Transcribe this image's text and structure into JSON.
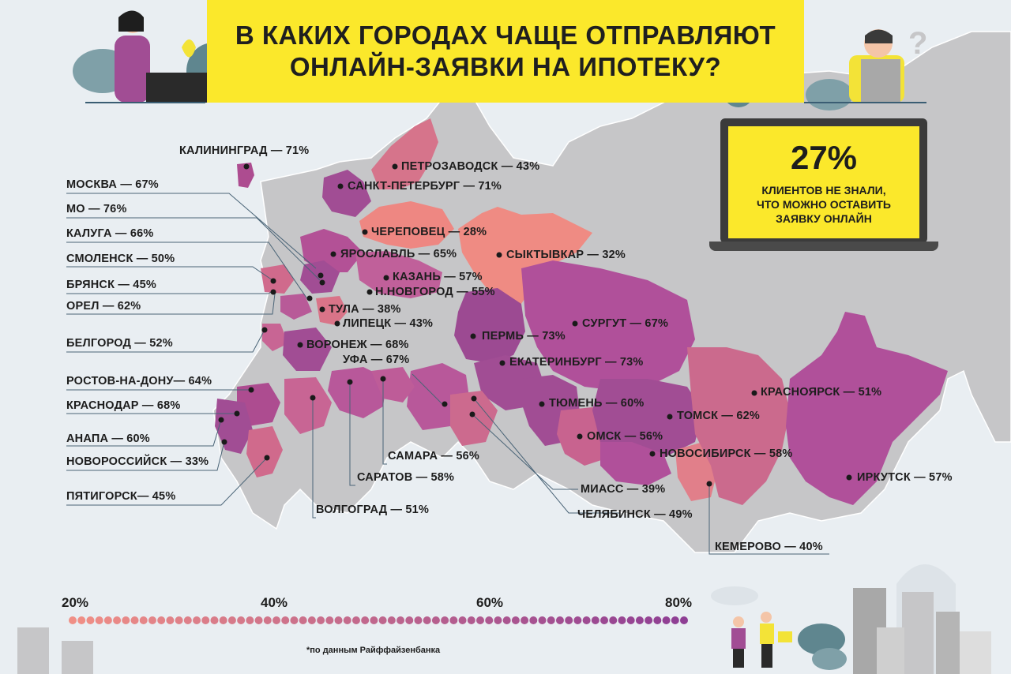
{
  "title": {
    "line1": "В КАКИХ ГОРОДАХ ЧАЩЕ ОТПРАВЛЯЮТ",
    "line2": "ОНЛАЙН-ЗАЯВКИ НА ИПОТЕКУ?"
  },
  "callout": {
    "value": "27%",
    "line1": "КЛИЕНТОВ НЕ ЗНАЛИ,",
    "line2": "ЧТО МОЖНО ОСТАВИТЬ",
    "line3": "ЗАЯВКУ ОНЛАЙН"
  },
  "cities": [
    {
      "label": "КАЛИНИНГРАД — 71%",
      "value": 71
    },
    {
      "label": "ПЕТРОЗАВОДСК — 43%",
      "value": 43
    },
    {
      "label": "САНКТ-ПЕТЕРБУРГ — 71%",
      "value": 71
    },
    {
      "label": "МОСКВА — 67%",
      "value": 67
    },
    {
      "label": "МО — 76%",
      "value": 76
    },
    {
      "label": "КАЛУГА — 66%",
      "value": 66
    },
    {
      "label": "СМОЛЕНСК — 50%",
      "value": 50
    },
    {
      "label": "БРЯНСК — 45%",
      "value": 45
    },
    {
      "label": "ОРЕЛ — 62%",
      "value": 62
    },
    {
      "label": "БЕЛГОРОД — 52%",
      "value": 52
    },
    {
      "label": "РОСТОВ-НА-ДОНУ— 64%",
      "value": 64
    },
    {
      "label": "КРАСНОДАР — 68%",
      "value": 68
    },
    {
      "label": "АНАПА — 60%",
      "value": 60
    },
    {
      "label": "НОВОРОССИЙСК — 33%",
      "value": 33
    },
    {
      "label": "ПЯТИГОРСК— 45%",
      "value": 45
    },
    {
      "label": "ЧЕРЕПОВЕЦ — 28%",
      "value": 28
    },
    {
      "label": "ЯРОСЛАВЛЬ — 65%",
      "value": 65
    },
    {
      "label": "КАЗАНЬ — 57%",
      "value": 57
    },
    {
      "label": "Н.НОВГОРОД — 55%",
      "value": 55
    },
    {
      "label": "ТУЛА — 38%",
      "value": 38
    },
    {
      "label": "ЛИПЕЦК — 43%",
      "value": 43
    },
    {
      "label": "ВОРОНЕЖ — 68%",
      "value": 68
    },
    {
      "label": "УФА — 67%",
      "value": 67
    },
    {
      "label": "СЫКТЫВКАР — 32%",
      "value": 32
    },
    {
      "label": "ПЕРМЬ — 73%",
      "value": 73
    },
    {
      "label": "СУРГУТ — 67%",
      "value": 67
    },
    {
      "label": "ЕКАТЕРИНБУРГ — 73%",
      "value": 73
    },
    {
      "label": "ТЮМЕНЬ — 60%",
      "value": 60
    },
    {
      "label": "ОМСК — 56%",
      "value": 56
    },
    {
      "label": "ТОМСК — 62%",
      "value": 62
    },
    {
      "label": "НОВОСИБИРСК — 58%",
      "value": 58
    },
    {
      "label": "КРАСНОЯРСК — 51%",
      "value": 51
    },
    {
      "label": "ИРКУТСК — 57%",
      "value": 57
    },
    {
      "label": "КЕМЕРОВО — 40%",
      "value": 40
    },
    {
      "label": "САМАРА — 56%",
      "value": 56
    },
    {
      "label": "САРАТОВ — 58%",
      "value": 58
    },
    {
      "label": "ВОЛГОГРАД — 51%",
      "value": 51
    },
    {
      "label": "МИАСС — 39%",
      "value": 39
    },
    {
      "label": "ЧЕЛЯБИНСК — 49%",
      "value": 49
    }
  ],
  "scale": {
    "ticks": [
      "20%",
      "40%",
      "60%",
      "80%"
    ],
    "min": 20,
    "max": 80,
    "color_low": "#f08f86",
    "color_high": "#8e3e94"
  },
  "footnote": "*по данным Райффайзенбанка",
  "colors": {
    "title_bg": "#fbe82b",
    "land": "#c6c6c8",
    "background": "#e9eef2"
  }
}
